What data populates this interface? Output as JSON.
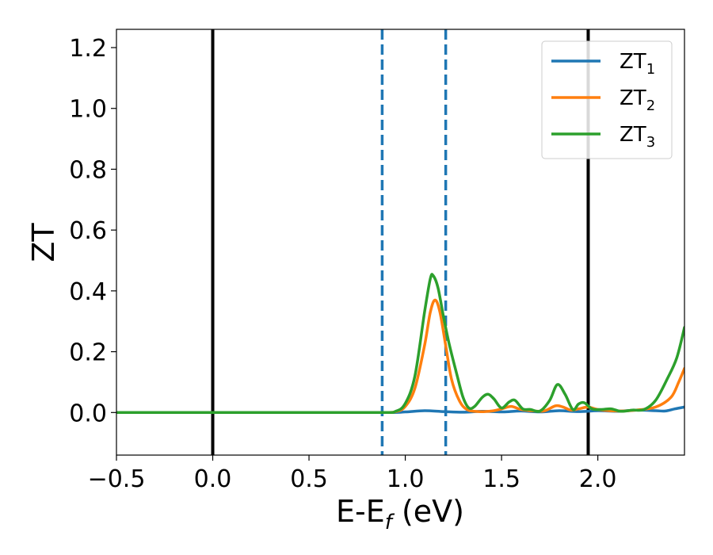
{
  "chart_data": {
    "type": "line",
    "xlabel": "E-E",
    "xlabel_sub": "f",
    "xlabel_unit": " (eV)",
    "ylabel": "ZT",
    "xlim": [
      -0.5,
      2.45
    ],
    "ylim": [
      -0.14,
      1.26
    ],
    "xticks": [
      {
        "value": -0.5,
        "label": "−0.5"
      },
      {
        "value": 0.0,
        "label": "0.0"
      },
      {
        "value": 0.5,
        "label": "0.5"
      },
      {
        "value": 1.0,
        "label": "1.0"
      },
      {
        "value": 1.5,
        "label": "1.5"
      },
      {
        "value": 2.0,
        "label": "2.0"
      }
    ],
    "yticks": [
      {
        "value": 0.0,
        "label": "0.0"
      },
      {
        "value": 0.2,
        "label": "0.2"
      },
      {
        "value": 0.4,
        "label": "0.4"
      },
      {
        "value": 0.6,
        "label": "0.6"
      },
      {
        "value": 0.8,
        "label": "0.8"
      },
      {
        "value": 1.0,
        "label": "1.0"
      },
      {
        "value": 1.2,
        "label": "1.2"
      }
    ],
    "grid": false,
    "legend_position": "top-right",
    "vlines": [
      {
        "x": 0.0,
        "style": "solid",
        "color": "#000000"
      },
      {
        "x": 1.95,
        "style": "solid",
        "color": "#000000"
      },
      {
        "x": 0.88,
        "style": "dashed",
        "color": "#1f77b4"
      },
      {
        "x": 1.21,
        "style": "dashed",
        "color": "#1f77b4"
      }
    ],
    "series": [
      {
        "name": "ZT",
        "sub": "1",
        "color": "#1f77b4",
        "points": [
          [
            -0.5,
            0.0
          ],
          [
            0.5,
            0.0
          ],
          [
            0.9,
            0.0
          ],
          [
            1.0,
            0.002
          ],
          [
            1.1,
            0.006
          ],
          [
            1.2,
            0.003
          ],
          [
            1.3,
            0.001
          ],
          [
            1.4,
            0.004
          ],
          [
            1.5,
            0.002
          ],
          [
            1.6,
            0.005
          ],
          [
            1.7,
            0.002
          ],
          [
            1.8,
            0.006
          ],
          [
            1.9,
            0.003
          ],
          [
            2.0,
            0.006
          ],
          [
            2.1,
            0.004
          ],
          [
            2.2,
            0.008
          ],
          [
            2.3,
            0.006
          ],
          [
            2.35,
            0.005
          ],
          [
            2.4,
            0.012
          ],
          [
            2.45,
            0.018
          ]
        ]
      },
      {
        "name": "ZT",
        "sub": "2",
        "color": "#ff7f0e",
        "points": [
          [
            -0.5,
            0.0
          ],
          [
            0.5,
            0.0
          ],
          [
            0.88,
            0.0
          ],
          [
            0.95,
            0.003
          ],
          [
            1.0,
            0.02
          ],
          [
            1.05,
            0.08
          ],
          [
            1.1,
            0.22
          ],
          [
            1.13,
            0.33
          ],
          [
            1.155,
            0.37
          ],
          [
            1.18,
            0.33
          ],
          [
            1.21,
            0.22
          ],
          [
            1.24,
            0.11
          ],
          [
            1.28,
            0.04
          ],
          [
            1.32,
            0.01
          ],
          [
            1.38,
            0.003
          ],
          [
            1.45,
            0.005
          ],
          [
            1.5,
            0.012
          ],
          [
            1.55,
            0.02
          ],
          [
            1.6,
            0.01
          ],
          [
            1.65,
            0.006
          ],
          [
            1.72,
            0.005
          ],
          [
            1.78,
            0.022
          ],
          [
            1.82,
            0.018
          ],
          [
            1.86,
            0.008
          ],
          [
            1.9,
            0.012
          ],
          [
            1.95,
            0.018
          ],
          [
            2.0,
            0.01
          ],
          [
            2.1,
            0.005
          ],
          [
            2.2,
            0.008
          ],
          [
            2.3,
            0.018
          ],
          [
            2.38,
            0.05
          ],
          [
            2.42,
            0.1
          ],
          [
            2.45,
            0.145
          ]
        ]
      },
      {
        "name": "ZT",
        "sub": "3",
        "color": "#2ca02c",
        "points": [
          [
            -0.5,
            0.0
          ],
          [
            0.5,
            0.0
          ],
          [
            0.88,
            0.0
          ],
          [
            0.95,
            0.004
          ],
          [
            1.0,
            0.03
          ],
          [
            1.05,
            0.12
          ],
          [
            1.1,
            0.33
          ],
          [
            1.13,
            0.44
          ],
          [
            1.145,
            0.45
          ],
          [
            1.17,
            0.41
          ],
          [
            1.2,
            0.31
          ],
          [
            1.23,
            0.22
          ],
          [
            1.27,
            0.12
          ],
          [
            1.3,
            0.05
          ],
          [
            1.33,
            0.015
          ],
          [
            1.36,
            0.02
          ],
          [
            1.4,
            0.05
          ],
          [
            1.43,
            0.06
          ],
          [
            1.46,
            0.045
          ],
          [
            1.5,
            0.015
          ],
          [
            1.54,
            0.035
          ],
          [
            1.57,
            0.04
          ],
          [
            1.61,
            0.012
          ],
          [
            1.65,
            0.01
          ],
          [
            1.7,
            0.005
          ],
          [
            1.75,
            0.04
          ],
          [
            1.79,
            0.092
          ],
          [
            1.83,
            0.06
          ],
          [
            1.87,
            0.01
          ],
          [
            1.9,
            0.028
          ],
          [
            1.93,
            0.032
          ],
          [
            1.97,
            0.012
          ],
          [
            2.02,
            0.01
          ],
          [
            2.07,
            0.012
          ],
          [
            2.12,
            0.004
          ],
          [
            2.18,
            0.008
          ],
          [
            2.24,
            0.01
          ],
          [
            2.3,
            0.04
          ],
          [
            2.36,
            0.11
          ],
          [
            2.41,
            0.18
          ],
          [
            2.45,
            0.28
          ]
        ]
      }
    ]
  }
}
